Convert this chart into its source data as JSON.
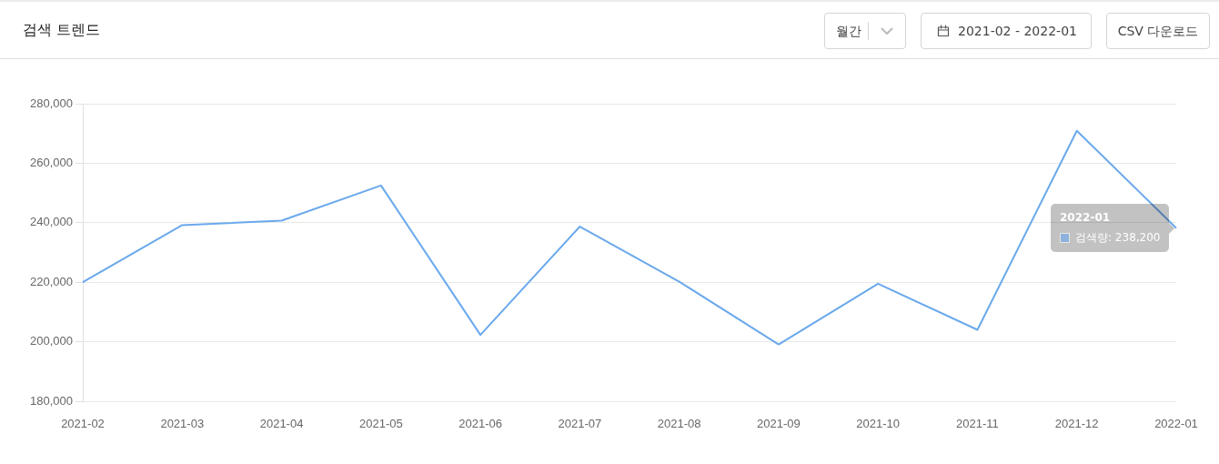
{
  "chart_data": {
    "type": "line",
    "title": "검색 트렌드",
    "annotations": [
      "월간",
      "2021-02 - 2022-01",
      "CSV 다운로드"
    ],
    "categories": [
      "2021-02",
      "2021-03",
      "2021-04",
      "2021-05",
      "2021-06",
      "2021-07",
      "2021-08",
      "2021-09",
      "2021-10",
      "2021-11",
      "2021-12",
      "2022-01"
    ],
    "series": [
      {
        "color": "#6aa9ec",
        "values": [
          220000,
          239200,
          240700,
          252500,
          202300,
          238700,
          220200,
          199100,
          219500,
          204000,
          270900,
          238200
        ],
        "value_labels": [
          null,
          null,
          null,
          null,
          null,
          null,
          null,
          null,
          null,
          null,
          null,
          "검색량: 238,200"
        ]
      }
    ],
    "ylim": [
      180000,
      280000
    ],
    "yticks": [
      {
        "value": 180000,
        "label": "180,000"
      },
      {
        "value": 200000,
        "label": "200,000"
      },
      {
        "value": 220000,
        "label": "220,000"
      },
      {
        "value": 240000,
        "label": "240,000"
      },
      {
        "value": 260000,
        "label": "260,000"
      },
      {
        "value": 280000,
        "label": "280,000"
      }
    ],
    "grid": "y",
    "marker": "none",
    "line_style": "solid"
  }
}
